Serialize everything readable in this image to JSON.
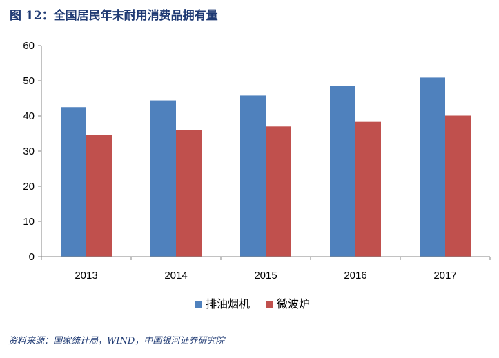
{
  "title": "图 12：全国居民年末耐用消费品拥有量",
  "source": "资料来源：国家统计局，WIND，中国银河证券研究院",
  "chart_data": {
    "type": "bar",
    "title": "图 12：全国居民年末耐用消费品拥有量",
    "xlabel": "",
    "ylabel": "",
    "categories": [
      "2013",
      "2014",
      "2015",
      "2016",
      "2017"
    ],
    "series": [
      {
        "name": "排油烟机",
        "color": "#4f81bd",
        "values": [
          42.5,
          44.4,
          45.8,
          48.6,
          50.9
        ]
      },
      {
        "name": "微波炉",
        "color": "#c0504d",
        "values": [
          34.7,
          36.0,
          37.0,
          38.3,
          40.1
        ]
      }
    ],
    "ylim": [
      0,
      60
    ],
    "yticks": [
      0,
      10,
      20,
      30,
      40,
      50,
      60
    ],
    "grid": false,
    "legend_position": "bottom"
  }
}
